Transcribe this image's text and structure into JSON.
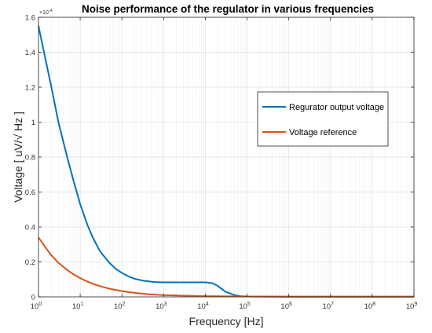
{
  "chart_data": {
    "type": "line",
    "title": "Noise performance of the regulator in various frequencies",
    "xlabel": "Frequency [Hz]",
    "ylabel": "Voltage [ uV/√ Hz ]",
    "xscale": "log",
    "xlim": [
      1,
      1000000000
    ],
    "ylim": [
      0,
      0.00016
    ],
    "y_exponent_label": "×10",
    "y_exponent": "-4",
    "grid": true,
    "legend_position": "right",
    "x_ticks": [
      {
        "base": "10",
        "exp": "0"
      },
      {
        "base": "10",
        "exp": "1"
      },
      {
        "base": "10",
        "exp": "2"
      },
      {
        "base": "10",
        "exp": "3"
      },
      {
        "base": "10",
        "exp": "4"
      },
      {
        "base": "10",
        "exp": "5"
      },
      {
        "base": "10",
        "exp": "6"
      },
      {
        "base": "10",
        "exp": "7"
      },
      {
        "base": "10",
        "exp": "8"
      },
      {
        "base": "10",
        "exp": "9"
      }
    ],
    "y_ticks": [
      {
        "value": 0,
        "label": "0"
      },
      {
        "value": 2e-05,
        "label": "0.2"
      },
      {
        "value": 4e-05,
        "label": "0.4"
      },
      {
        "value": 6e-05,
        "label": "0.6"
      },
      {
        "value": 8e-05,
        "label": "0.8"
      },
      {
        "value": 0.0001,
        "label": "1"
      },
      {
        "value": 0.00012,
        "label": "1.2"
      },
      {
        "value": 0.00014,
        "label": "1.4"
      },
      {
        "value": 0.00016,
        "label": "1.6"
      }
    ],
    "series": [
      {
        "name": "Regurator output voltage",
        "color": "#0072BD",
        "x": [
          1,
          1.5,
          2,
          3,
          5,
          7,
          10,
          15,
          20,
          30,
          50,
          70,
          100,
          150,
          200,
          300,
          500,
          700,
          1000,
          2000,
          5000,
          10000,
          15000,
          20000,
          30000,
          50000,
          70000,
          100000,
          1000000,
          10000000,
          100000000,
          1000000000
        ],
        "y": [
          0.000155,
          0.000135,
          0.000121,
          0.0001,
          7.9e-05,
          6.6e-05,
          5.3e-05,
          4.1e-05,
          3.4e-05,
          2.6e-05,
          1.95e-05,
          1.62e-05,
          1.37e-05,
          1.15e-05,
          1.04e-05,
          9.4e-06,
          8.7e-06,
          8.4e-06,
          8.3e-06,
          8.3e-06,
          8.3e-06,
          8.3e-06,
          7.8e-06,
          6.2e-06,
          3e-06,
          1e-06,
          4e-07,
          2e-07,
          1e-07,
          1e-07,
          1e-07,
          1e-07
        ]
      },
      {
        "name": "Voltage reference",
        "color": "#D95319",
        "x": [
          1,
          1.5,
          2,
          3,
          5,
          7,
          10,
          15,
          20,
          30,
          50,
          70,
          100,
          150,
          200,
          300,
          500,
          700,
          1000,
          10000,
          100000,
          1000000,
          10000000,
          100000000,
          1000000000
        ],
        "y": [
          3.4e-05,
          2.8e-05,
          2.4e-05,
          1.95e-05,
          1.52e-05,
          1.28e-05,
          1.07e-05,
          8.7e-06,
          7.5e-06,
          6.1e-06,
          4.7e-06,
          4e-06,
          3.3e-06,
          2.7e-06,
          2.3e-06,
          1.9e-06,
          1.4e-06,
          1.2e-06,
          1e-06,
          4e-07,
          2e-07,
          1e-07,
          1e-07,
          1e-07,
          1e-07
        ]
      }
    ]
  }
}
